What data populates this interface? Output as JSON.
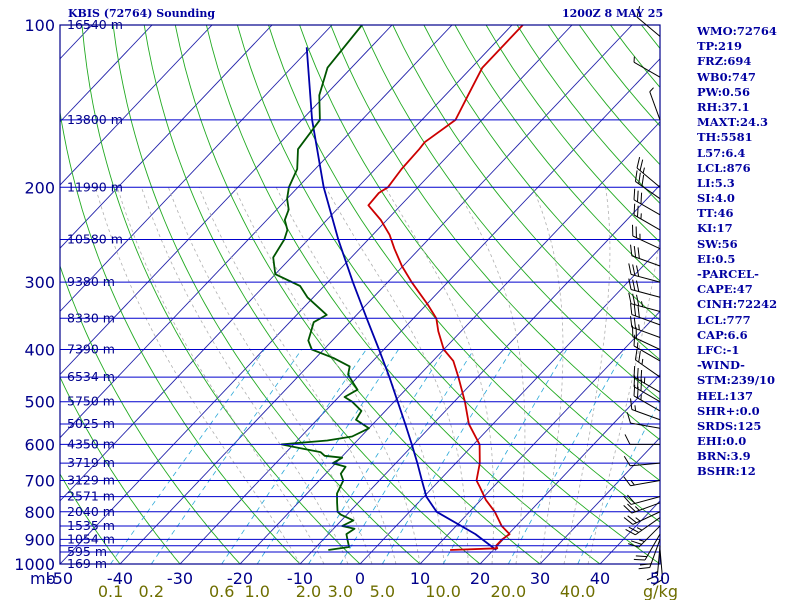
{
  "header": {
    "station": "KBIS (72764) Sounding",
    "valid": "1200Z  8 MAY 25"
  },
  "indices": [
    "WMO:72764",
    "TP:219",
    "FRZ:694",
    "WB0:747",
    "PW:0.56",
    "RH:37.1",
    "MAXT:24.3",
    "TH:5581",
    "L57:6.4",
    "LCL:876",
    "LI:5.3",
    "SI:4.0",
    "TT:46",
    "KI:17",
    "SW:56",
    "EI:0.5",
    "-PARCEL-",
    "CAPE:47",
    "CINH:72242",
    "LCL:777",
    "CAP:6.6",
    "LFC:-1",
    "-WIND-",
    "STM:239/10",
    "HEL:137",
    "SHR+:0.0",
    "SRDS:125",
    "EHI:0.0",
    "BRN:3.9",
    "BSHR:12"
  ],
  "colors": {
    "frame": "#00008b",
    "isobar": "#0000cd",
    "isotherm": "#2222aa",
    "dry_adiabat": "#22aa22",
    "moist_adiabat": "#b0b0b0",
    "mixing_ratio": "#2aa8d8",
    "temperature": "#cc0000",
    "dewpoint": "#005500",
    "parcel": "#0000aa",
    "wind": "#000000",
    "mixratio_text": "#6e6e00"
  },
  "chart_data": {
    "type": "line",
    "subtype": "skew-T log-p",
    "x_axis": {
      "unit_label": "mb",
      "temp_ticks": [
        -50,
        -40,
        -30,
        -20,
        -10,
        0,
        10,
        20,
        30,
        40,
        50
      ],
      "temp_labels": [
        "-50",
        "-40",
        "-30",
        "-20",
        "-10",
        "0",
        "10",
        "20",
        "30",
        "40",
        "50"
      ]
    },
    "y_axis": {
      "scale": "log",
      "pressure_range": [
        1000,
        100
      ],
      "pressure_labels": [
        {
          "p": 100,
          "text": "100"
        },
        {
          "p": 200,
          "text": "200"
        },
        {
          "p": 300,
          "text": "300"
        },
        {
          "p": 400,
          "text": "400"
        },
        {
          "p": 500,
          "text": "500"
        },
        {
          "p": 600,
          "text": "600"
        },
        {
          "p": 700,
          "text": "700"
        },
        {
          "p": 800,
          "text": "800"
        },
        {
          "p": 900,
          "text": "900"
        },
        {
          "p": 1000,
          "text": "1000"
        }
      ]
    },
    "height_labels": [
      {
        "p": 100,
        "text": "16540 m"
      },
      {
        "p": 150,
        "text": "13800 m"
      },
      {
        "p": 200,
        "text": "11990 m"
      },
      {
        "p": 250,
        "text": "10580 m"
      },
      {
        "p": 300,
        "text": "9380 m"
      },
      {
        "p": 350,
        "text": "8330 m"
      },
      {
        "p": 400,
        "text": "7390 m"
      },
      {
        "p": 450,
        "text": "6534 m"
      },
      {
        "p": 500,
        "text": "5750 m"
      },
      {
        "p": 550,
        "text": "5025 m"
      },
      {
        "p": 600,
        "text": "4350 m"
      },
      {
        "p": 650,
        "text": "3719 m"
      },
      {
        "p": 700,
        "text": "3129 m"
      },
      {
        "p": 750,
        "text": "2571 m"
      },
      {
        "p": 800,
        "text": "2040 m"
      },
      {
        "p": 850,
        "text": "1535 m"
      },
      {
        "p": 900,
        "text": "1054 m"
      },
      {
        "p": 950,
        "text": "595 m"
      },
      {
        "p": 1000,
        "text": "169 m"
      }
    ],
    "mixing_ratio_labels": [
      {
        "w": 0.1,
        "text": "0.1"
      },
      {
        "w": 0.2,
        "text": "0.2"
      },
      {
        "w": 0.6,
        "text": "0.6"
      },
      {
        "w": 1.0,
        "text": "1.0"
      },
      {
        "w": 2.0,
        "text": "2.0"
      },
      {
        "w": 3.0,
        "text": "3.0"
      },
      {
        "w": 5.0,
        "text": "5.0"
      },
      {
        "w": 10.0,
        "text": "10.0"
      },
      {
        "w": 20.0,
        "text": "20.0"
      },
      {
        "w": 40.0,
        "text": "40.0"
      }
    ],
    "mixing_ratio_unit": "g/kg",
    "temperature_profile": [
      [
        942,
        12.8
      ],
      [
        935,
        20.4
      ],
      [
        925,
        19.8
      ],
      [
        900,
        19.8
      ],
      [
        880,
        20.2
      ],
      [
        850,
        17.6
      ],
      [
        800,
        14.2
      ],
      [
        760,
        10.8
      ],
      [
        720,
        7.8
      ],
      [
        700,
        6.2
      ],
      [
        650,
        4.0
      ],
      [
        600,
        1.0
      ],
      [
        550,
        -4.0
      ],
      [
        500,
        -8.2
      ],
      [
        450,
        -13.2
      ],
      [
        420,
        -16.6
      ],
      [
        400,
        -20.0
      ],
      [
        370,
        -23.8
      ],
      [
        350,
        -26.2
      ],
      [
        330,
        -29.8
      ],
      [
        300,
        -36.0
      ],
      [
        280,
        -40.2
      ],
      [
        260,
        -44.2
      ],
      [
        245,
        -47.2
      ],
      [
        230,
        -51.0
      ],
      [
        216,
        -55.4
      ],
      [
        205,
        -55.6
      ],
      [
        200,
        -55.0
      ],
      [
        185,
        -55.6
      ],
      [
        170,
        -55.8
      ],
      [
        165,
        -56.0
      ],
      [
        150,
        -54.4
      ],
      [
        135,
        -56.2
      ],
      [
        120,
        -58.2
      ],
      [
        100,
        -58.2
      ]
    ],
    "dewpoint_profile": [
      [
        942,
        -7.5
      ],
      [
        930,
        -4.5
      ],
      [
        900,
        -6.0
      ],
      [
        880,
        -7.0
      ],
      [
        860,
        -6.5
      ],
      [
        850,
        -9.0
      ],
      [
        830,
        -8.0
      ],
      [
        810,
        -11.0
      ],
      [
        800,
        -12.0
      ],
      [
        770,
        -13.5
      ],
      [
        740,
        -15.0
      ],
      [
        720,
        -15.5
      ],
      [
        700,
        -16.0
      ],
      [
        680,
        -17.5
      ],
      [
        660,
        -17.8
      ],
      [
        650,
        -20.5
      ],
      [
        635,
        -19.8
      ],
      [
        630,
        -23.0
      ],
      [
        620,
        -24.3
      ],
      [
        608,
        -29.0
      ],
      [
        600,
        -32.0
      ],
      [
        590,
        -25.0
      ],
      [
        580,
        -21.5
      ],
      [
        560,
        -20.0
      ],
      [
        540,
        -23.5
      ],
      [
        520,
        -24.0
      ],
      [
        500,
        -27.0
      ],
      [
        490,
        -29.0
      ],
      [
        475,
        -28.0
      ],
      [
        460,
        -30.0
      ],
      [
        445,
        -32.0
      ],
      [
        430,
        -33.0
      ],
      [
        415,
        -37.0
      ],
      [
        400,
        -42.0
      ],
      [
        385,
        -44.0
      ],
      [
        370,
        -45.0
      ],
      [
        356,
        -46.0
      ],
      [
        345,
        -45.0
      ],
      [
        320,
        -51.0
      ],
      [
        305,
        -54.0
      ],
      [
        290,
        -60.0
      ],
      [
        270,
        -63.0
      ],
      [
        250,
        -64.0
      ],
      [
        240,
        -65.0
      ],
      [
        230,
        -67.0
      ],
      [
        220,
        -68.0
      ],
      [
        210,
        -70.0
      ],
      [
        200,
        -71.5
      ],
      [
        185,
        -73.0
      ],
      [
        170,
        -76.0
      ],
      [
        150,
        -77.0
      ],
      [
        135,
        -81.0
      ],
      [
        120,
        -84.0
      ],
      [
        100,
        -85.0
      ]
    ],
    "parcel_profile": [
      [
        942,
        20.5
      ],
      [
        880,
        14.5
      ],
      [
        800,
        4.5
      ],
      [
        750,
        0.4
      ],
      [
        700,
        -2.9
      ],
      [
        650,
        -6.4
      ],
      [
        600,
        -10.3
      ],
      [
        550,
        -14.6
      ],
      [
        500,
        -19.4
      ],
      [
        450,
        -24.7
      ],
      [
        400,
        -30.8
      ],
      [
        350,
        -37.8
      ],
      [
        300,
        -45.8
      ],
      [
        250,
        -55.0
      ],
      [
        200,
        -65.7
      ],
      [
        150,
        -78.3
      ],
      [
        110,
        -90.7
      ]
    ],
    "wind_barbs": [
      {
        "p": 940,
        "dir": 175,
        "spd": 10
      },
      {
        "p": 925,
        "dir": 185,
        "spd": 15
      },
      {
        "p": 900,
        "dir": 200,
        "spd": 20
      },
      {
        "p": 880,
        "dir": 210,
        "spd": 20
      },
      {
        "p": 850,
        "dir": 225,
        "spd": 25
      },
      {
        "p": 820,
        "dir": 235,
        "spd": 25
      },
      {
        "p": 800,
        "dir": 245,
        "spd": 25
      },
      {
        "p": 770,
        "dir": 250,
        "spd": 25
      },
      {
        "p": 750,
        "dir": 255,
        "spd": 20
      },
      {
        "p": 700,
        "dir": 260,
        "spd": 15
      },
      {
        "p": 650,
        "dir": 265,
        "spd": 10
      },
      {
        "p": 600,
        "dir": 270,
        "spd": 10
      },
      {
        "p": 560,
        "dir": 280,
        "spd": 10
      },
      {
        "p": 540,
        "dir": 290,
        "spd": 15
      },
      {
        "p": 520,
        "dir": 300,
        "spd": 25
      },
      {
        "p": 500,
        "dir": 300,
        "spd": 30
      },
      {
        "p": 480,
        "dir": 300,
        "spd": 35
      },
      {
        "p": 450,
        "dir": 305,
        "spd": 25
      },
      {
        "p": 420,
        "dir": 300,
        "spd": 15
      },
      {
        "p": 400,
        "dir": 295,
        "spd": 20
      },
      {
        "p": 380,
        "dir": 290,
        "spd": 25
      },
      {
        "p": 360,
        "dir": 290,
        "spd": 30
      },
      {
        "p": 340,
        "dir": 285,
        "spd": 35
      },
      {
        "p": 320,
        "dir": 285,
        "spd": 30
      },
      {
        "p": 300,
        "dir": 285,
        "spd": 30
      },
      {
        "p": 280,
        "dir": 290,
        "spd": 30
      },
      {
        "p": 260,
        "dir": 295,
        "spd": 25
      },
      {
        "p": 240,
        "dir": 300,
        "spd": 25
      },
      {
        "p": 225,
        "dir": 300,
        "spd": 30
      },
      {
        "p": 210,
        "dir": 305,
        "spd": 30
      },
      {
        "p": 200,
        "dir": 310,
        "spd": 25
      },
      {
        "p": 150,
        "dir": 340,
        "spd": 5
      },
      {
        "p": 125,
        "dir": 300,
        "spd": 5
      },
      {
        "p": 105,
        "dir": 310,
        "spd": 10
      }
    ]
  }
}
